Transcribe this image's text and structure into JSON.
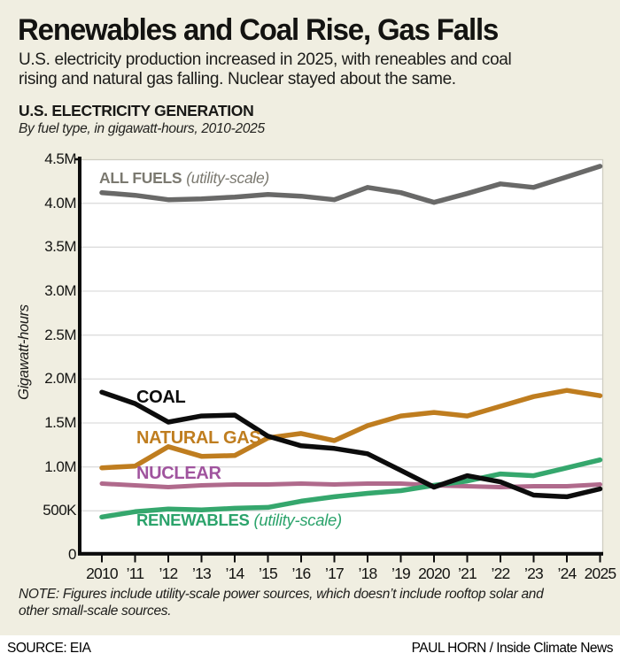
{
  "header": {
    "title": "Renewables and Coal Rise, Gas Falls",
    "subtitle": "U.S. electricity production increased in 2025, with reneables and coal rising and natural gas falling. Nuclear stayed about the same."
  },
  "chart_header": {
    "title": "U.S. ELECTRICITY GENERATION",
    "subtitle": "By fuel type, in gigawatt-hours, 2010-2025"
  },
  "chart_data": {
    "type": "line",
    "title": "U.S. ELECTRICITY GENERATION",
    "subtitle": "By fuel type, in gigawatt-hours, 2010-2025",
    "ylabel": "Gigawatt-hours",
    "values_unit": "million gigawatt-hours",
    "ylim": [
      0,
      4.5
    ],
    "grid": true,
    "legend_position": "inline-labels",
    "x": [
      2010,
      2011,
      2012,
      2013,
      2014,
      2015,
      2016,
      2017,
      2018,
      2019,
      2020,
      2021,
      2022,
      2023,
      2024,
      2025
    ],
    "x_tick_labels": [
      "2010",
      "’11",
      "’12",
      "’13",
      "’14",
      "’15",
      "’16",
      "’17",
      "’18",
      "’19",
      "2020",
      "’21",
      "’22",
      "’23",
      "’24",
      "2025"
    ],
    "y_tick_labels": [
      "4.5M",
      "4.0M",
      "3.5M",
      "3.0M",
      "2.5M",
      "2.0M",
      "1.5M",
      "1.0M",
      "500K",
      "0"
    ],
    "series": [
      {
        "id": "all_fuels",
        "name": "ALL FUELS",
        "qualifier": "(utility-scale)",
        "color": "#696968",
        "label_color": "#7b7970",
        "values": [
          4.12,
          4.09,
          4.04,
          4.05,
          4.07,
          4.1,
          4.08,
          4.04,
          4.18,
          4.12,
          4.01,
          4.11,
          4.22,
          4.18,
          4.3,
          4.42
        ]
      },
      {
        "id": "coal",
        "name": "COAL",
        "qualifier": "",
        "color": "#0c0c0c",
        "label_color": "#0c0c0c",
        "values": [
          1.85,
          1.72,
          1.51,
          1.58,
          1.59,
          1.35,
          1.24,
          1.21,
          1.15,
          0.96,
          0.77,
          0.9,
          0.83,
          0.68,
          0.66,
          0.75
        ]
      },
      {
        "id": "natural_gas",
        "name": "NATURAL GAS",
        "qualifier": "",
        "color": "#bf7d1f",
        "label_color": "#bf7d1f",
        "values": [
          0.99,
          1.01,
          1.23,
          1.12,
          1.13,
          1.33,
          1.38,
          1.3,
          1.47,
          1.58,
          1.62,
          1.58,
          1.69,
          1.8,
          1.87,
          1.81
        ]
      },
      {
        "id": "nuclear",
        "name": "NUCLEAR",
        "qualifier": "",
        "color": "#b06a8c",
        "label_color": "#a0549e",
        "values": [
          0.81,
          0.79,
          0.77,
          0.79,
          0.8,
          0.8,
          0.81,
          0.8,
          0.81,
          0.81,
          0.79,
          0.78,
          0.77,
          0.78,
          0.78,
          0.8
        ]
      },
      {
        "id": "renewables",
        "name": "RENEWABLES",
        "qualifier": "(utility-scale)",
        "color": "#35a76d",
        "label_color": "#2ba36b",
        "values": [
          0.43,
          0.49,
          0.52,
          0.51,
          0.53,
          0.54,
          0.61,
          0.66,
          0.7,
          0.73,
          0.79,
          0.84,
          0.92,
          0.9,
          0.99,
          1.08
        ]
      }
    ]
  },
  "note": "NOTE: Figures include utility-scale power sources, which doesn’t include rooftop solar and other small-scale sources.",
  "footer": {
    "source": "SOURCE: EIA",
    "credit": "PAUL HORN / Inside Climate News"
  }
}
